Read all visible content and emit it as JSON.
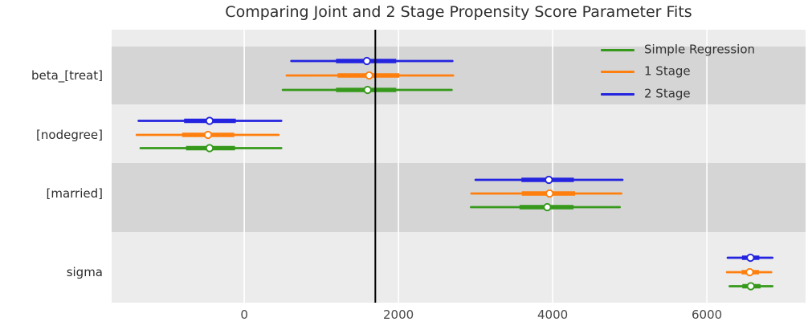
{
  "chart_data": {
    "type": "forest",
    "title": "Comparing Joint and 2 Stage Propensity Score Parameter Fits",
    "xlim": [
      -1720,
      7280
    ],
    "x_ticks": [
      0,
      2000,
      4000,
      6000
    ],
    "x_tick_labels": [
      "0",
      "2000",
      "4000",
      "6000"
    ],
    "reference_line_x": 1700,
    "grid": "vertical-white-gridlines",
    "legend_position": "upper-right",
    "legend": [
      {
        "label": "Simple Regression",
        "color": "simple"
      },
      {
        "label": "1 Stage",
        "color": "one_stage"
      },
      {
        "label": "2 Stage",
        "color": "two_stage"
      }
    ],
    "colors": {
      "simple": "#36991b",
      "one_stage": "#ff7f0e",
      "two_stage": "#2424e0",
      "reference_line": "#000000",
      "band_light": "#ececec",
      "band_dark": "#d5d5d5",
      "gridline": "#ffffff",
      "marker_fill": "#ffffff"
    },
    "rows": [
      {
        "label": "beta_[treat]",
        "series": [
          {
            "name": "2 Stage",
            "color": "two_stage",
            "point": 1590,
            "interval_thick": [
              1190,
              1970
            ],
            "interval_thin": [
              610,
              2700
            ]
          },
          {
            "name": "1 Stage",
            "color": "one_stage",
            "point": 1620,
            "interval_thick": [
              1210,
              2010
            ],
            "interval_thin": [
              550,
              2710
            ]
          },
          {
            "name": "Simple Regression",
            "color": "simple",
            "point": 1600,
            "interval_thick": [
              1190,
              1970
            ],
            "interval_thin": [
              500,
              2690
            ]
          }
        ]
      },
      {
        "label": "[nodegree]",
        "series": [
          {
            "name": "2 Stage",
            "color": "two_stage",
            "point": -450,
            "interval_thick": [
              -780,
              -110
            ],
            "interval_thin": [
              -1370,
              480
            ]
          },
          {
            "name": "1 Stage",
            "color": "one_stage",
            "point": -470,
            "interval_thick": [
              -805,
              -130
            ],
            "interval_thin": [
              -1395,
              445
            ]
          },
          {
            "name": "Simple Regression",
            "color": "simple",
            "point": -450,
            "interval_thick": [
              -755,
              -120
            ],
            "interval_thin": [
              -1345,
              480
            ]
          }
        ]
      },
      {
        "label": "[married]",
        "series": [
          {
            "name": "2 Stage",
            "color": "two_stage",
            "point": 3950,
            "interval_thick": [
              3595,
              4275
            ],
            "interval_thin": [
              3000,
              4905
            ]
          },
          {
            "name": "1 Stage",
            "color": "one_stage",
            "point": 3960,
            "interval_thick": [
              3600,
              4290
            ],
            "interval_thin": [
              2945,
              4890
            ]
          },
          {
            "name": "Simple Regression",
            "color": "simple",
            "point": 3930,
            "interval_thick": [
              3570,
              4270
            ],
            "interval_thin": [
              2940,
              4870
            ]
          }
        ]
      },
      {
        "label": "sigma",
        "series": [
          {
            "name": "2 Stage",
            "color": "two_stage",
            "point": 6565,
            "interval_thick": [
              6455,
              6680
            ],
            "interval_thin": [
              6270,
              6850
            ]
          },
          {
            "name": "1 Stage",
            "color": "one_stage",
            "point": 6555,
            "interval_thick": [
              6450,
              6675
            ],
            "interval_thin": [
              6260,
              6835
            ]
          },
          {
            "name": "Simple Regression",
            "color": "simple",
            "point": 6570,
            "interval_thick": [
              6460,
              6695
            ],
            "interval_thin": [
              6295,
              6850
            ]
          }
        ]
      }
    ]
  }
}
